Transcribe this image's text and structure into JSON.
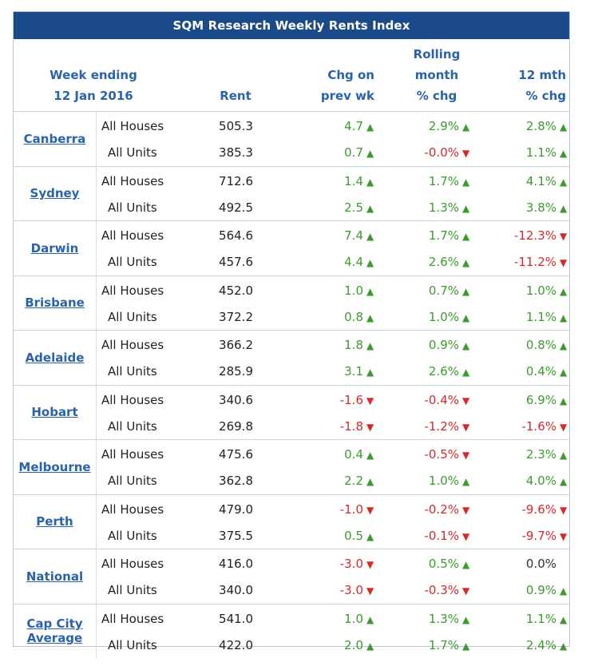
{
  "title": "SQM Research Weekly Rents Index",
  "headers": {
    "week_line1": "Week ending",
    "week_line2": "12 Jan 2016",
    "rent": "Rent",
    "chg_line1": "Chg on",
    "chg_line2": "prev wk",
    "roll_line1": "Rolling",
    "roll_line2": "month",
    "roll_line3": "% chg",
    "yr_line1": "12 mth",
    "yr_line2": "% chg"
  },
  "colors": {
    "title_bg": "#1b4a8a",
    "header_text": "#2a63a8",
    "up": "#3d9a2e",
    "down": "#d42a2a"
  },
  "icons": {
    "up": "triangle-up-icon",
    "down": "triangle-down-icon"
  },
  "groups": [
    {
      "city": "Canberra",
      "rows": [
        {
          "type": "All Houses",
          "rent": "505.3",
          "chg": "4.7",
          "chg_dir": "up",
          "roll": "2.9%",
          "roll_dir": "up",
          "yr": "2.8%",
          "yr_dir": "up"
        },
        {
          "type": "All Units",
          "rent": "385.3",
          "chg": "0.7",
          "chg_dir": "up",
          "roll": "-0.0%",
          "roll_dir": "down",
          "yr": "1.1%",
          "yr_dir": "up"
        }
      ]
    },
    {
      "city": "Sydney",
      "rows": [
        {
          "type": "All Houses",
          "rent": "712.6",
          "chg": "1.4",
          "chg_dir": "up",
          "roll": "1.7%",
          "roll_dir": "up",
          "yr": "4.1%",
          "yr_dir": "up"
        },
        {
          "type": "All Units",
          "rent": "492.5",
          "chg": "2.5",
          "chg_dir": "up",
          "roll": "1.3%",
          "roll_dir": "up",
          "yr": "3.8%",
          "yr_dir": "up"
        }
      ]
    },
    {
      "city": "Darwin",
      "rows": [
        {
          "type": "All Houses",
          "rent": "564.6",
          "chg": "7.4",
          "chg_dir": "up",
          "roll": "1.7%",
          "roll_dir": "up",
          "yr": "-12.3%",
          "yr_dir": "down"
        },
        {
          "type": "All Units",
          "rent": "457.6",
          "chg": "4.4",
          "chg_dir": "up",
          "roll": "2.6%",
          "roll_dir": "up",
          "yr": "-11.2%",
          "yr_dir": "down"
        }
      ]
    },
    {
      "city": "Brisbane",
      "rows": [
        {
          "type": "All Houses",
          "rent": "452.0",
          "chg": "1.0",
          "chg_dir": "up",
          "roll": "0.7%",
          "roll_dir": "up",
          "yr": "1.0%",
          "yr_dir": "up"
        },
        {
          "type": "All Units",
          "rent": "372.2",
          "chg": "0.8",
          "chg_dir": "up",
          "roll": "1.0%",
          "roll_dir": "up",
          "yr": "1.1%",
          "yr_dir": "up"
        }
      ]
    },
    {
      "city": "Adelaide",
      "rows": [
        {
          "type": "All Houses",
          "rent": "366.2",
          "chg": "1.8",
          "chg_dir": "up",
          "roll": "0.9%",
          "roll_dir": "up",
          "yr": "0.8%",
          "yr_dir": "up"
        },
        {
          "type": "All Units",
          "rent": "285.9",
          "chg": "3.1",
          "chg_dir": "up",
          "roll": "2.6%",
          "roll_dir": "up",
          "yr": "0.4%",
          "yr_dir": "up"
        }
      ]
    },
    {
      "city": "Hobart",
      "rows": [
        {
          "type": "All Houses",
          "rent": "340.6",
          "chg": "-1.6",
          "chg_dir": "down",
          "roll": "-0.4%",
          "roll_dir": "down",
          "yr": "6.9%",
          "yr_dir": "up"
        },
        {
          "type": "All Units",
          "rent": "269.8",
          "chg": "-1.8",
          "chg_dir": "down",
          "roll": "-1.2%",
          "roll_dir": "down",
          "yr": "-1.6%",
          "yr_dir": "down"
        }
      ]
    },
    {
      "city": "Melbourne",
      "rows": [
        {
          "type": "All Houses",
          "rent": "475.6",
          "chg": "0.4",
          "chg_dir": "up",
          "roll": "-0.5%",
          "roll_dir": "down",
          "yr": "2.3%",
          "yr_dir": "up"
        },
        {
          "type": "All Units",
          "rent": "362.8",
          "chg": "2.2",
          "chg_dir": "up",
          "roll": "1.0%",
          "roll_dir": "up",
          "yr": "4.0%",
          "yr_dir": "up"
        }
      ]
    },
    {
      "city": "Perth",
      "rows": [
        {
          "type": "All Houses",
          "rent": "479.0",
          "chg": "-1.0",
          "chg_dir": "down",
          "roll": "-0.2%",
          "roll_dir": "down",
          "yr": "-9.6%",
          "yr_dir": "down"
        },
        {
          "type": "All Units",
          "rent": "375.5",
          "chg": "0.5",
          "chg_dir": "up",
          "roll": "-0.1%",
          "roll_dir": "down",
          "yr": "-9.7%",
          "yr_dir": "down"
        }
      ]
    },
    {
      "city": "National",
      "rows": [
        {
          "type": "All Houses",
          "rent": "416.0",
          "chg": "-3.0",
          "chg_dir": "down",
          "roll": "0.5%",
          "roll_dir": "up",
          "yr": "0.0%",
          "yr_dir": "none"
        },
        {
          "type": "All Units",
          "rent": "340.0",
          "chg": "-3.0",
          "chg_dir": "down",
          "roll": "-0.3%",
          "roll_dir": "down",
          "yr": "0.9%",
          "yr_dir": "up"
        }
      ]
    },
    {
      "city": "Cap City Average",
      "rows": [
        {
          "type": "All Houses",
          "rent": "541.0",
          "chg": "1.0",
          "chg_dir": "up",
          "roll": "1.3%",
          "roll_dir": "up",
          "yr": "1.1%",
          "yr_dir": "up"
        },
        {
          "type": "All Units",
          "rent": "422.0",
          "chg": "2.0",
          "chg_dir": "up",
          "roll": "1.7%",
          "roll_dir": "up",
          "yr": "2.4%",
          "yr_dir": "up"
        }
      ]
    }
  ]
}
